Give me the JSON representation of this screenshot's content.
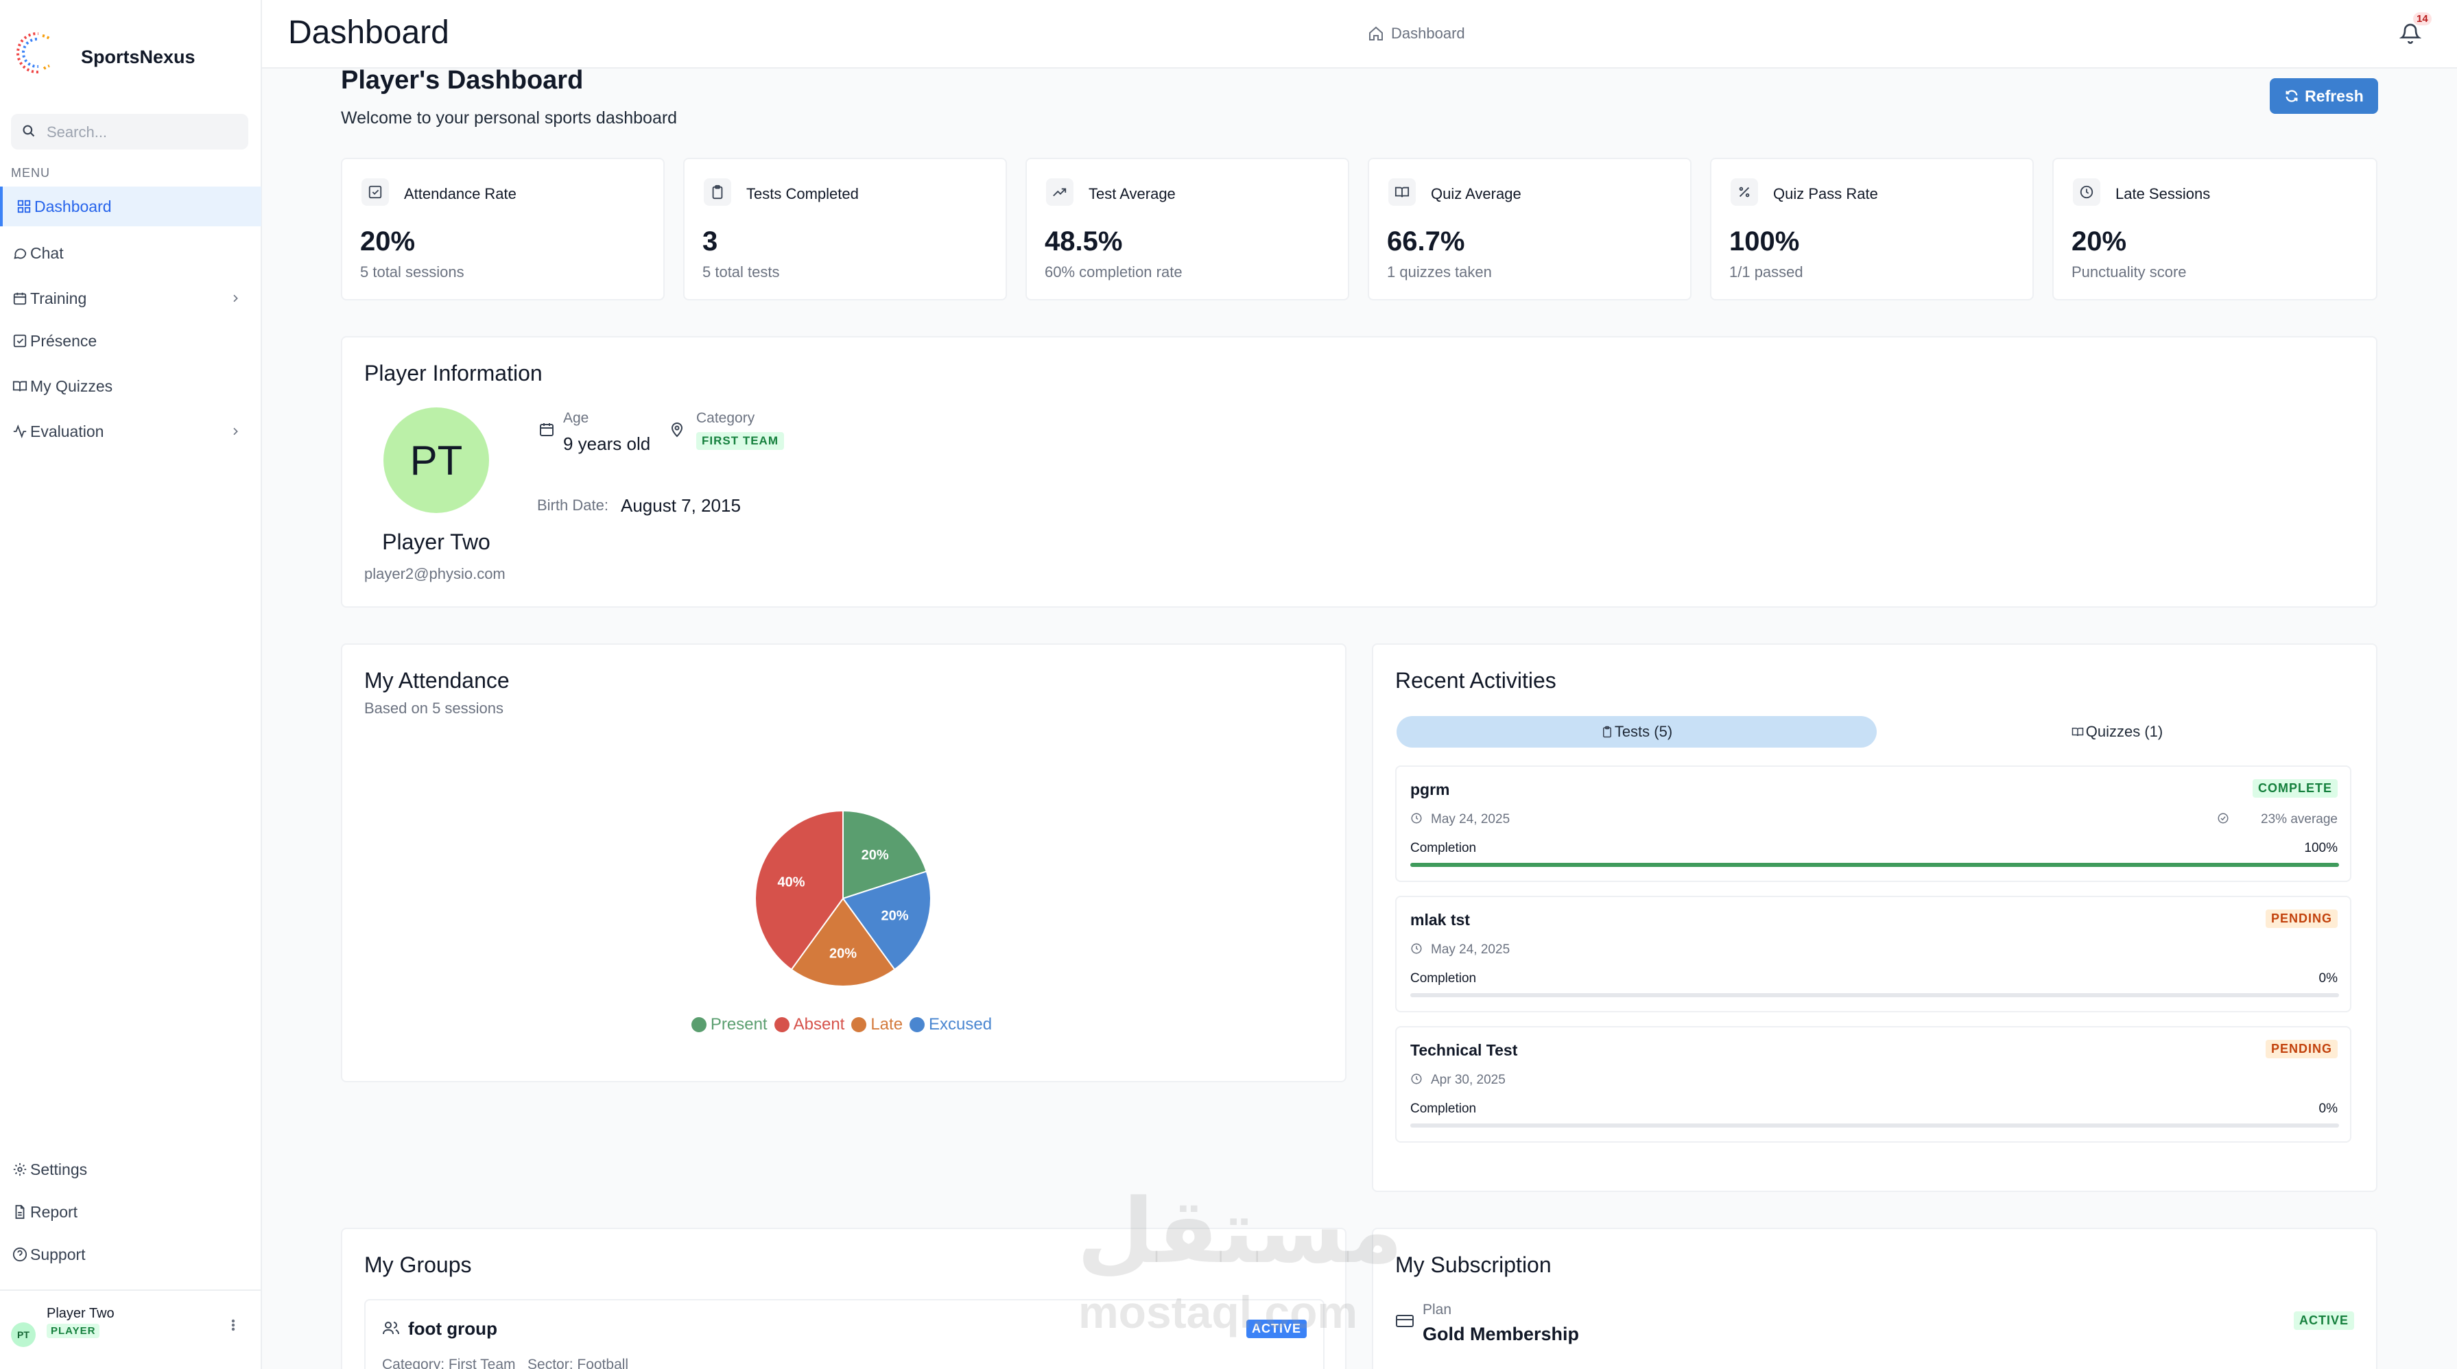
{
  "app": {
    "name": "SportsNexus"
  },
  "sidebar": {
    "search_placeholder": "Search...",
    "menu_label": "MENU",
    "items": [
      {
        "label": "Dashboard",
        "icon": "grid-icon",
        "active": true
      },
      {
        "label": "Chat",
        "icon": "chat-icon"
      },
      {
        "label": "Training",
        "icon": "calendar-icon",
        "chevron": true
      },
      {
        "label": "Présence",
        "icon": "check-square-icon"
      },
      {
        "label": "My Quizzes",
        "icon": "book-icon"
      },
      {
        "label": "Evaluation",
        "icon": "activity-icon",
        "chevron": true
      }
    ],
    "bottom_items": [
      {
        "label": "Settings",
        "icon": "gear-icon"
      },
      {
        "label": "Report",
        "icon": "file-icon"
      },
      {
        "label": "Support",
        "icon": "help-icon"
      }
    ],
    "user": {
      "initials": "PT",
      "name": "Player Two",
      "role": "PLAYER"
    }
  },
  "header": {
    "title": "Dashboard",
    "breadcrumb": "Dashboard",
    "notification_count": "14"
  },
  "page": {
    "title": "Player's Dashboard",
    "subtitle": "Welcome to your personal sports dashboard",
    "refresh_label": "Refresh"
  },
  "stats": [
    {
      "title": "Attendance Rate",
      "value": "20%",
      "sub": "5 total sessions",
      "icon": "check-square-icon"
    },
    {
      "title": "Tests Completed",
      "value": "3",
      "sub": "5 total tests",
      "icon": "clipboard-icon"
    },
    {
      "title": "Test Average",
      "value": "48.5%",
      "sub": "60% completion rate",
      "icon": "trending-up-icon"
    },
    {
      "title": "Quiz Average",
      "value": "66.7%",
      "sub": "1 quizzes taken",
      "icon": "book-icon"
    },
    {
      "title": "Quiz Pass Rate",
      "value": "100%",
      "sub": "1/1 passed",
      "icon": "percent-icon"
    },
    {
      "title": "Late Sessions",
      "value": "20%",
      "sub": "Punctuality score",
      "icon": "clock-icon"
    }
  ],
  "player_info": {
    "title": "Player Information",
    "initials": "PT",
    "name": "Player Two",
    "email": "player2@physio.com",
    "age_label": "Age",
    "age_value": "9 years old",
    "category_label": "Category",
    "category_value": "FIRST TEAM",
    "birth_label": "Birth Date:",
    "birth_value": "August 7, 2015"
  },
  "attendance": {
    "title": "My Attendance",
    "subtitle": "Based on 5 sessions"
  },
  "chart_data": {
    "type": "pie",
    "categories": [
      "Present",
      "Absent",
      "Late",
      "Excused"
    ],
    "values": [
      20,
      40,
      20,
      20
    ],
    "labels": [
      "20%",
      "40%",
      "20%",
      "20%"
    ],
    "colors": [
      "#5a9e6f",
      "#d6524b",
      "#d47a3c",
      "#4a86d0"
    ],
    "legend": "bottom"
  },
  "activities": {
    "title": "Recent Activities",
    "tabs": [
      {
        "label": "Tests (5)",
        "active": true
      },
      {
        "label": "Quizzes (1)",
        "active": false
      }
    ],
    "items": [
      {
        "name": "pgrm",
        "status": "COMPLETE",
        "date": "May 24, 2025",
        "average": "23% average",
        "completion_label": "Completion",
        "completion": "100%",
        "progress": 1.0
      },
      {
        "name": "mlak tst",
        "status": "PENDING",
        "date": "May 24, 2025",
        "average": "",
        "completion_label": "Completion",
        "completion": "0%",
        "progress": 0
      },
      {
        "name": "Technical Test",
        "status": "PENDING",
        "date": "Apr 30, 2025",
        "average": "",
        "completion_label": "Completion",
        "completion": "0%",
        "progress": 0
      }
    ]
  },
  "groups": {
    "title": "My Groups",
    "items": [
      {
        "name": "foot group",
        "status": "ACTIVE",
        "meta": "Category: First Team   Sector: Football"
      }
    ]
  },
  "subscription": {
    "title": "My Subscription",
    "plan_label": "Plan",
    "plan_value": "Gold Membership",
    "status": "ACTIVE"
  },
  "watermark": {
    "arabic": "مستقل",
    "latin": "mostaql.com"
  }
}
